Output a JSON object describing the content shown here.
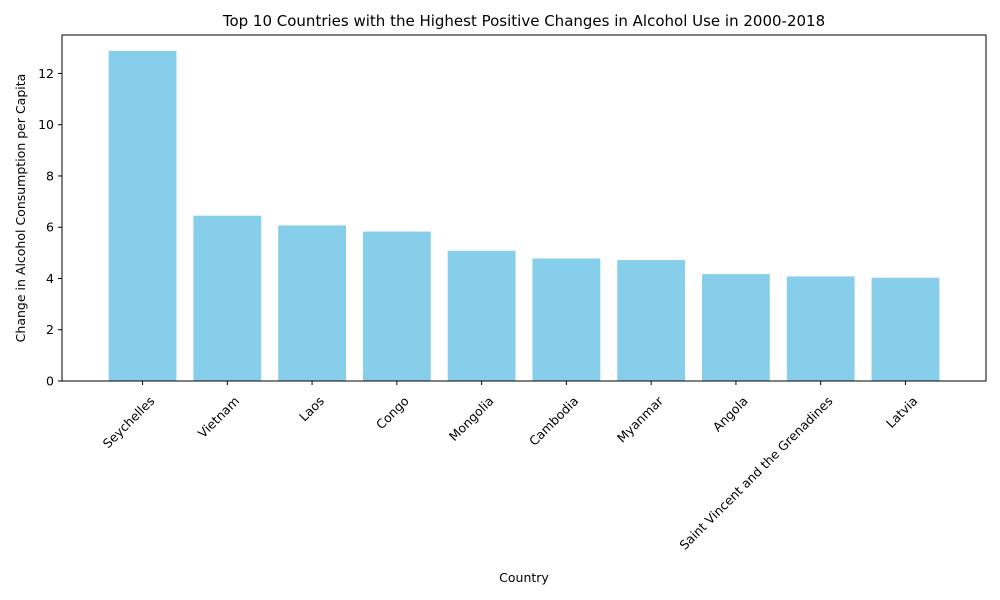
{
  "chart_data": {
    "type": "bar",
    "title": "Top 10 Countries with the Highest Positive Changes in Alcohol Use in 2000-2018",
    "xlabel": "Country",
    "ylabel": "Change in Alcohol Consumption per Capita",
    "categories": [
      "Seychelles",
      "Vietnam",
      "Laos",
      "Congo",
      "Mongolia",
      "Cambodia",
      "Myanmar",
      "Angola",
      "Saint Vincent and the Grenadines",
      "Latvia"
    ],
    "values": [
      12.88,
      6.45,
      6.07,
      5.83,
      5.08,
      4.78,
      4.72,
      4.17,
      4.08,
      4.03
    ],
    "ylim": [
      0,
      13.5
    ],
    "yticks": [
      0,
      2,
      4,
      6,
      8,
      10,
      12
    ],
    "bar_color": "#87CEEB",
    "grid": false,
    "legend": false
  }
}
